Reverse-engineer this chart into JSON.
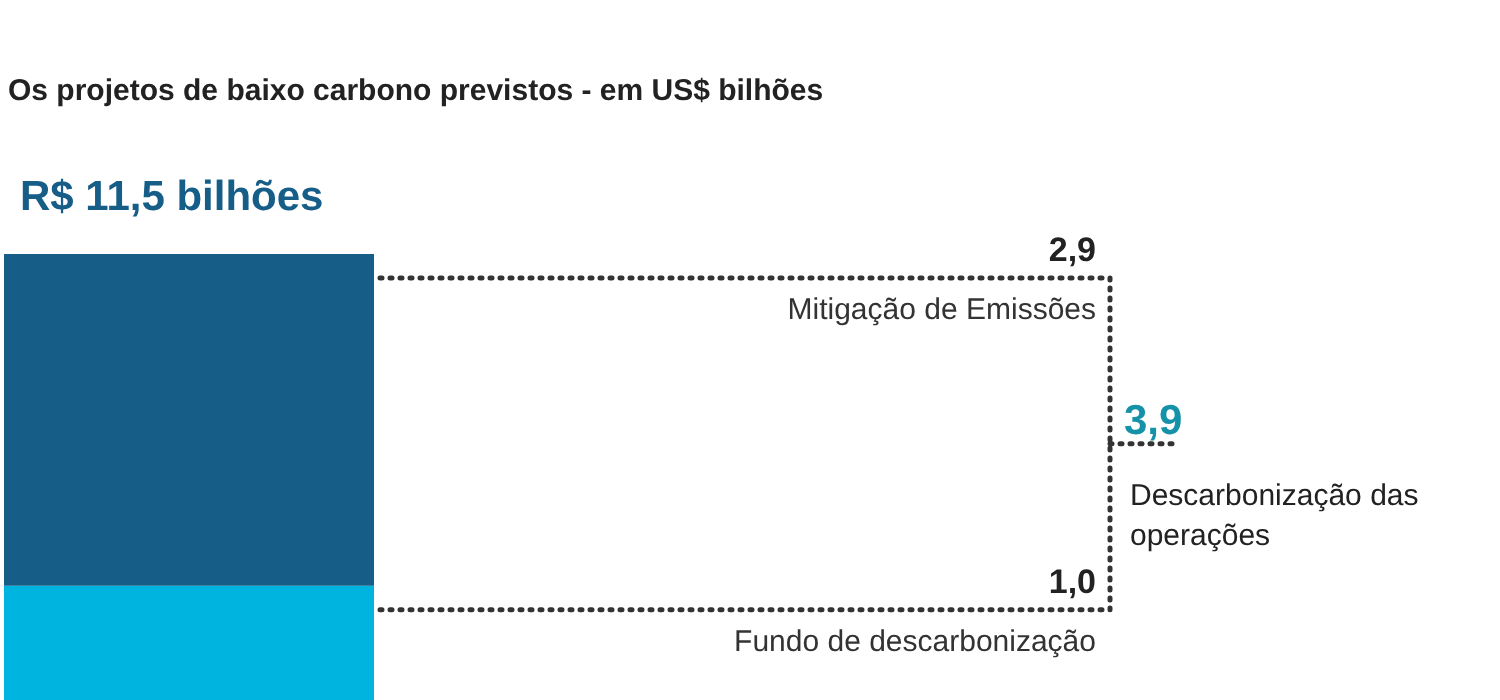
{
  "chart_data": {
    "type": "bar",
    "title": "Os projetos de baixo carbono previstos - em US$ bilhões",
    "stacked": true,
    "categories": [
      null
    ],
    "series": [
      {
        "name": "Fundo de descarbonização",
        "color": "#00b4e0",
        "values": [
          1.0
        ],
        "value_labels": [
          "1,0"
        ]
      },
      {
        "name": "Mitigação de Emissões",
        "color": "#165e87",
        "values": [
          2.9
        ],
        "value_labels": [
          "2,9"
        ]
      }
    ],
    "annotations": [
      "R$ 11,5 bilhões",
      "3,9",
      "Descarbonização das operações"
    ],
    "legend": false
  }
}
